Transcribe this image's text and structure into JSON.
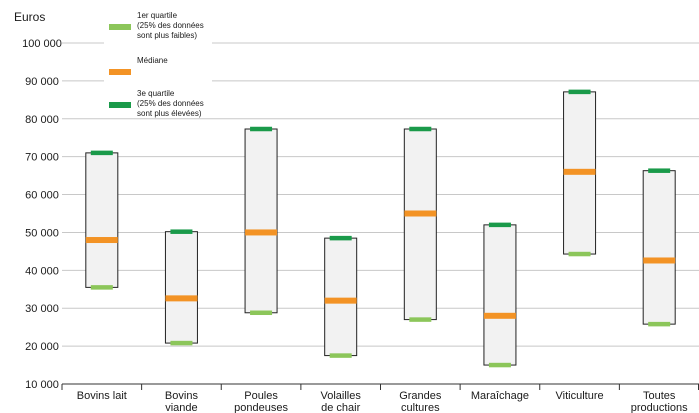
{
  "chart_data": {
    "type": "boxplot",
    "y_unit_label": "Euros",
    "ylim": [
      10000,
      100000
    ],
    "yticks": [
      10000,
      20000,
      30000,
      40000,
      50000,
      60000,
      70000,
      80000,
      90000,
      100000
    ],
    "ytick_labels": [
      "10 000",
      "20 000",
      "30 000",
      "40 000",
      "50 000",
      "60 000",
      "70 000",
      "80 000",
      "90 000",
      "100 000"
    ],
    "grid": true,
    "categories": [
      [
        "Bovins lait"
      ],
      [
        "Bovins",
        "viande"
      ],
      [
        "Poules",
        "pondeuses"
      ],
      [
        "Volailles",
        "de chair"
      ],
      [
        "Grandes",
        "cultures"
      ],
      [
        "Maraîchage"
      ],
      [
        "Viticulture"
      ],
      [
        "Toutes",
        "productions"
      ]
    ],
    "series": [
      {
        "name": "1er quartile (25% des données sont plus faibles)",
        "key": "q1",
        "values": [
          35500,
          20800,
          28800,
          17500,
          27000,
          15000,
          44300,
          25800
        ]
      },
      {
        "name": "Médiane",
        "key": "median",
        "values": [
          48000,
          32600,
          50000,
          32000,
          55000,
          28000,
          66000,
          42600
        ]
      },
      {
        "name": "3e quartile (25% des données sont plus élevées)",
        "key": "q3",
        "values": [
          71000,
          50200,
          77300,
          48500,
          77300,
          52000,
          87100,
          66300
        ]
      }
    ],
    "legend": {
      "position": "top-left",
      "items": [
        {
          "lines": [
            "1er quartile",
            "(25% des données",
            "sont plus faibles)"
          ],
          "color": "#8cc65a"
        },
        {
          "lines": [
            "Médiane"
          ],
          "color": "#f39325"
        },
        {
          "lines": [
            "3e quartile",
            "(25% des données",
            "sont plus élevées)"
          ],
          "color": "#1a9a4a"
        }
      ]
    },
    "colors": {
      "q1": "#8cc65a",
      "median": "#f39325",
      "q3": "#1a9a4a",
      "box_fill": "#f2f2f2",
      "box_stroke": "#222222",
      "grid": "#c8c8c8"
    }
  }
}
